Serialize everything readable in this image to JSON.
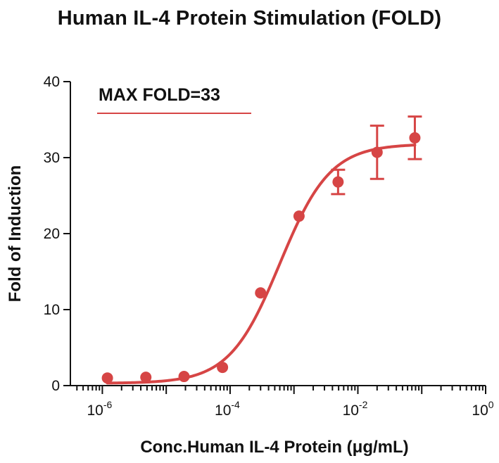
{
  "chart_data": {
    "type": "scatter",
    "title": "Human IL-4 Protein Stimulation (FOLD)",
    "xlabel": "Conc.Human IL-4 Protein (μg/mL)",
    "ylabel": "Fold of Induction",
    "x_scale": "log",
    "xlim": [
      3.16e-07,
      1
    ],
    "ylim": [
      0,
      40
    ],
    "x_ticks": [
      {
        "base": "10",
        "exp": "-6",
        "value": 1e-06
      },
      {
        "base": "10",
        "exp": "-4",
        "value": 0.0001
      },
      {
        "base": "10",
        "exp": "-2",
        "value": 0.01
      },
      {
        "base": "10",
        "exp": "0",
        "value": 1
      }
    ],
    "y_ticks": [
      "0",
      "10",
      "20",
      "30",
      "40"
    ],
    "annotation": "MAX FOLD=33",
    "color": "#d64545",
    "grid": false,
    "series": [
      {
        "x": [
          1.2e-06,
          4.8e-06,
          1.9e-05,
          7.6e-05,
          0.0003,
          0.0012,
          0.0049,
          0.02,
          0.078
        ],
        "y": [
          1.0,
          1.1,
          1.2,
          2.4,
          12.2,
          22.3,
          26.8,
          30.7,
          32.6
        ],
        "error": [
          0,
          0,
          0,
          0,
          0,
          0,
          1.6,
          3.5,
          2.8
        ]
      }
    ],
    "fit": {
      "model": "four-parameter logistic",
      "bottom": 0.3,
      "top": 31.8,
      "ec50": 0.0006,
      "hill": 1.1
    }
  }
}
